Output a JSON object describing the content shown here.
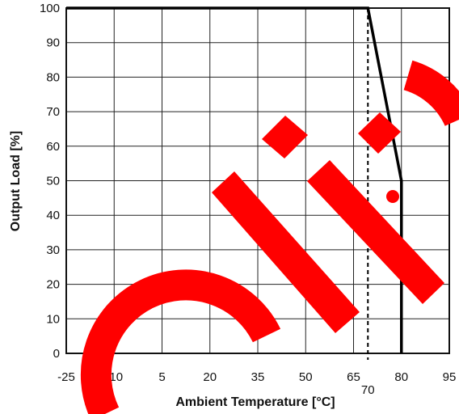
{
  "chart_data": {
    "type": "line",
    "title": "",
    "xlabel": "Ambient Temperature [°C]",
    "ylabel": "Output Load [%]",
    "xlim": [
      -25,
      95
    ],
    "ylim": [
      0,
      100
    ],
    "x_ticks": [
      {
        "value": -25,
        "label": "-25"
      },
      {
        "value": -10,
        "label": "-10"
      },
      {
        "value": 5,
        "label": "5"
      },
      {
        "value": 20,
        "label": "20"
      },
      {
        "value": 35,
        "label": "35"
      },
      {
        "value": 50,
        "label": "50"
      },
      {
        "value": 65,
        "label": "65"
      },
      {
        "value": 80,
        "label": "80"
      },
      {
        "value": 95,
        "label": "95"
      }
    ],
    "y_ticks": [
      0,
      10,
      20,
      30,
      40,
      50,
      60,
      70,
      80,
      90,
      100
    ],
    "grid": true,
    "series": [
      {
        "x": [
          -25,
          69.5,
          80,
          80
        ],
        "y": [
          100,
          100,
          50,
          0
        ],
        "color": "#000000",
        "style": "solid"
      }
    ],
    "annotations": [
      {
        "type": "vline",
        "x": 69.5,
        "label": "70",
        "style": "dashed",
        "color": "#000000"
      }
    ]
  },
  "watermark": {
    "color": "#ff0000"
  }
}
